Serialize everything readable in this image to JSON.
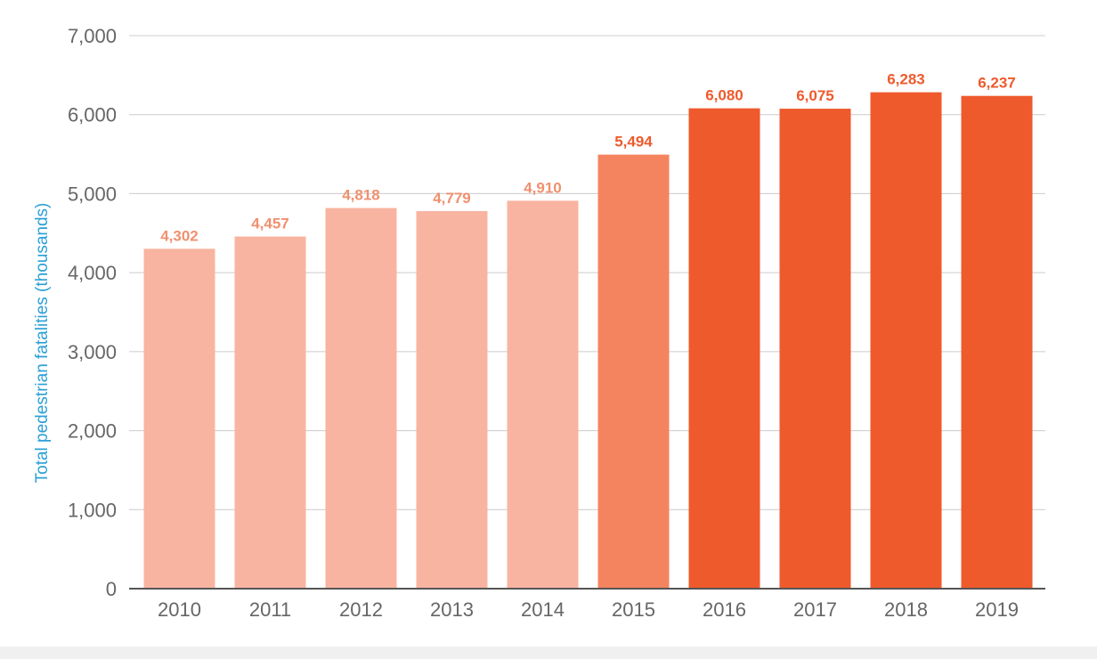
{
  "chart_data": {
    "type": "bar",
    "title": "",
    "xlabel": "",
    "ylabel": "Total pedestrian fatalities (thousands)",
    "ylim": [
      0,
      7000
    ],
    "yticks": [
      0,
      1000,
      2000,
      3000,
      4000,
      5000,
      6000,
      7000
    ],
    "ytick_labels": [
      "0",
      "1,000",
      "2,000",
      "3,000",
      "4,000",
      "5,000",
      "6,000",
      "7,000"
    ],
    "grid": true,
    "categories": [
      "2010",
      "2011",
      "2012",
      "2013",
      "2014",
      "2015",
      "2016",
      "2017",
      "2018",
      "2019"
    ],
    "values": [
      4302,
      4457,
      4818,
      4779,
      4910,
      5494,
      6080,
      6075,
      6283,
      6237
    ],
    "value_labels": [
      "4,302",
      "4,457",
      "4,818",
      "4,779",
      "4,910",
      "5,494",
      "6,080",
      "6,075",
      "6,283",
      "6,237"
    ],
    "bar_colors": [
      "#f8b4a0",
      "#f8b4a0",
      "#f8b4a0",
      "#f8b4a0",
      "#f8b4a0",
      "#f4845f",
      "#ee5a2c",
      "#ee5a2c",
      "#ee5a2c",
      "#ee5a2c"
    ],
    "label_colors": [
      "#f0906f",
      "#f0906f",
      "#f0906f",
      "#f0906f",
      "#f0906f",
      "#ee5a2c",
      "#ee5a2c",
      "#ee5a2c",
      "#ee5a2c",
      "#ee5a2c"
    ]
  }
}
